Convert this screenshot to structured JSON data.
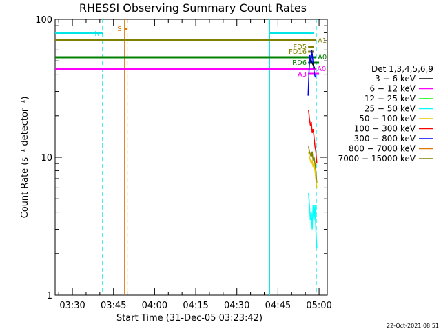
{
  "chart_data": {
    "type": "line",
    "title": "RHESSI Observing Summary Count Rates",
    "xlabel": "Start Time (31-Dec-05 03:23:42)",
    "ylabel": "Count Rate (s⁻¹ detector⁻¹)",
    "y_scale": "log",
    "ylim": [
      1,
      100
    ],
    "y_ticks": [
      {
        "value": 1,
        "label": "1"
      },
      {
        "value": 10,
        "label": "10"
      },
      {
        "value": 100,
        "label": "100"
      }
    ],
    "xlim": [
      "03:23:42",
      "05:03:00"
    ],
    "x_ticks": [
      "03:30",
      "03:45",
      "04:00",
      "04:15",
      "04:30",
      "04:45",
      "05:00"
    ],
    "legend": {
      "title": "Det 1,3,4,5,6,9",
      "position": "right",
      "entries": [
        {
          "label": "3 − 6 keV",
          "color": "#000000"
        },
        {
          "label": "6 − 12 keV",
          "color": "#ff00ff"
        },
        {
          "label": "12 − 25 keV",
          "color": "#00ff00"
        },
        {
          "label": "25 − 50 keV",
          "color": "#00ffff"
        },
        {
          "label": "50 − 100 keV",
          "color": "#e6c800"
        },
        {
          "label": "100 − 300 keV",
          "color": "#ff0000"
        },
        {
          "label": "300 − 800 keV",
          "color": "#0000ff"
        },
        {
          "label": "800 − 7000 keV",
          "color": "#e07800"
        },
        {
          "label": "7000 − 15000 keV",
          "color": "#808000"
        }
      ]
    },
    "annotations": [
      {
        "label": "N",
        "color": "#00e5e5"
      },
      {
        "label": "S",
        "color": "#e07800"
      },
      {
        "label": "A1",
        "color": "#808000"
      },
      {
        "label": "FD5",
        "color": "#808000"
      },
      {
        "label": "FD16",
        "color": "#808000"
      },
      {
        "label": "A0",
        "color": "#008000"
      },
      {
        "label": "RD6",
        "color": "#008000"
      },
      {
        "label": "A3",
        "color": "#ff00ff"
      },
      {
        "label": "A0",
        "color": "#ff00ff"
      }
    ],
    "footer": "22-Oct-2021 08:51"
  }
}
